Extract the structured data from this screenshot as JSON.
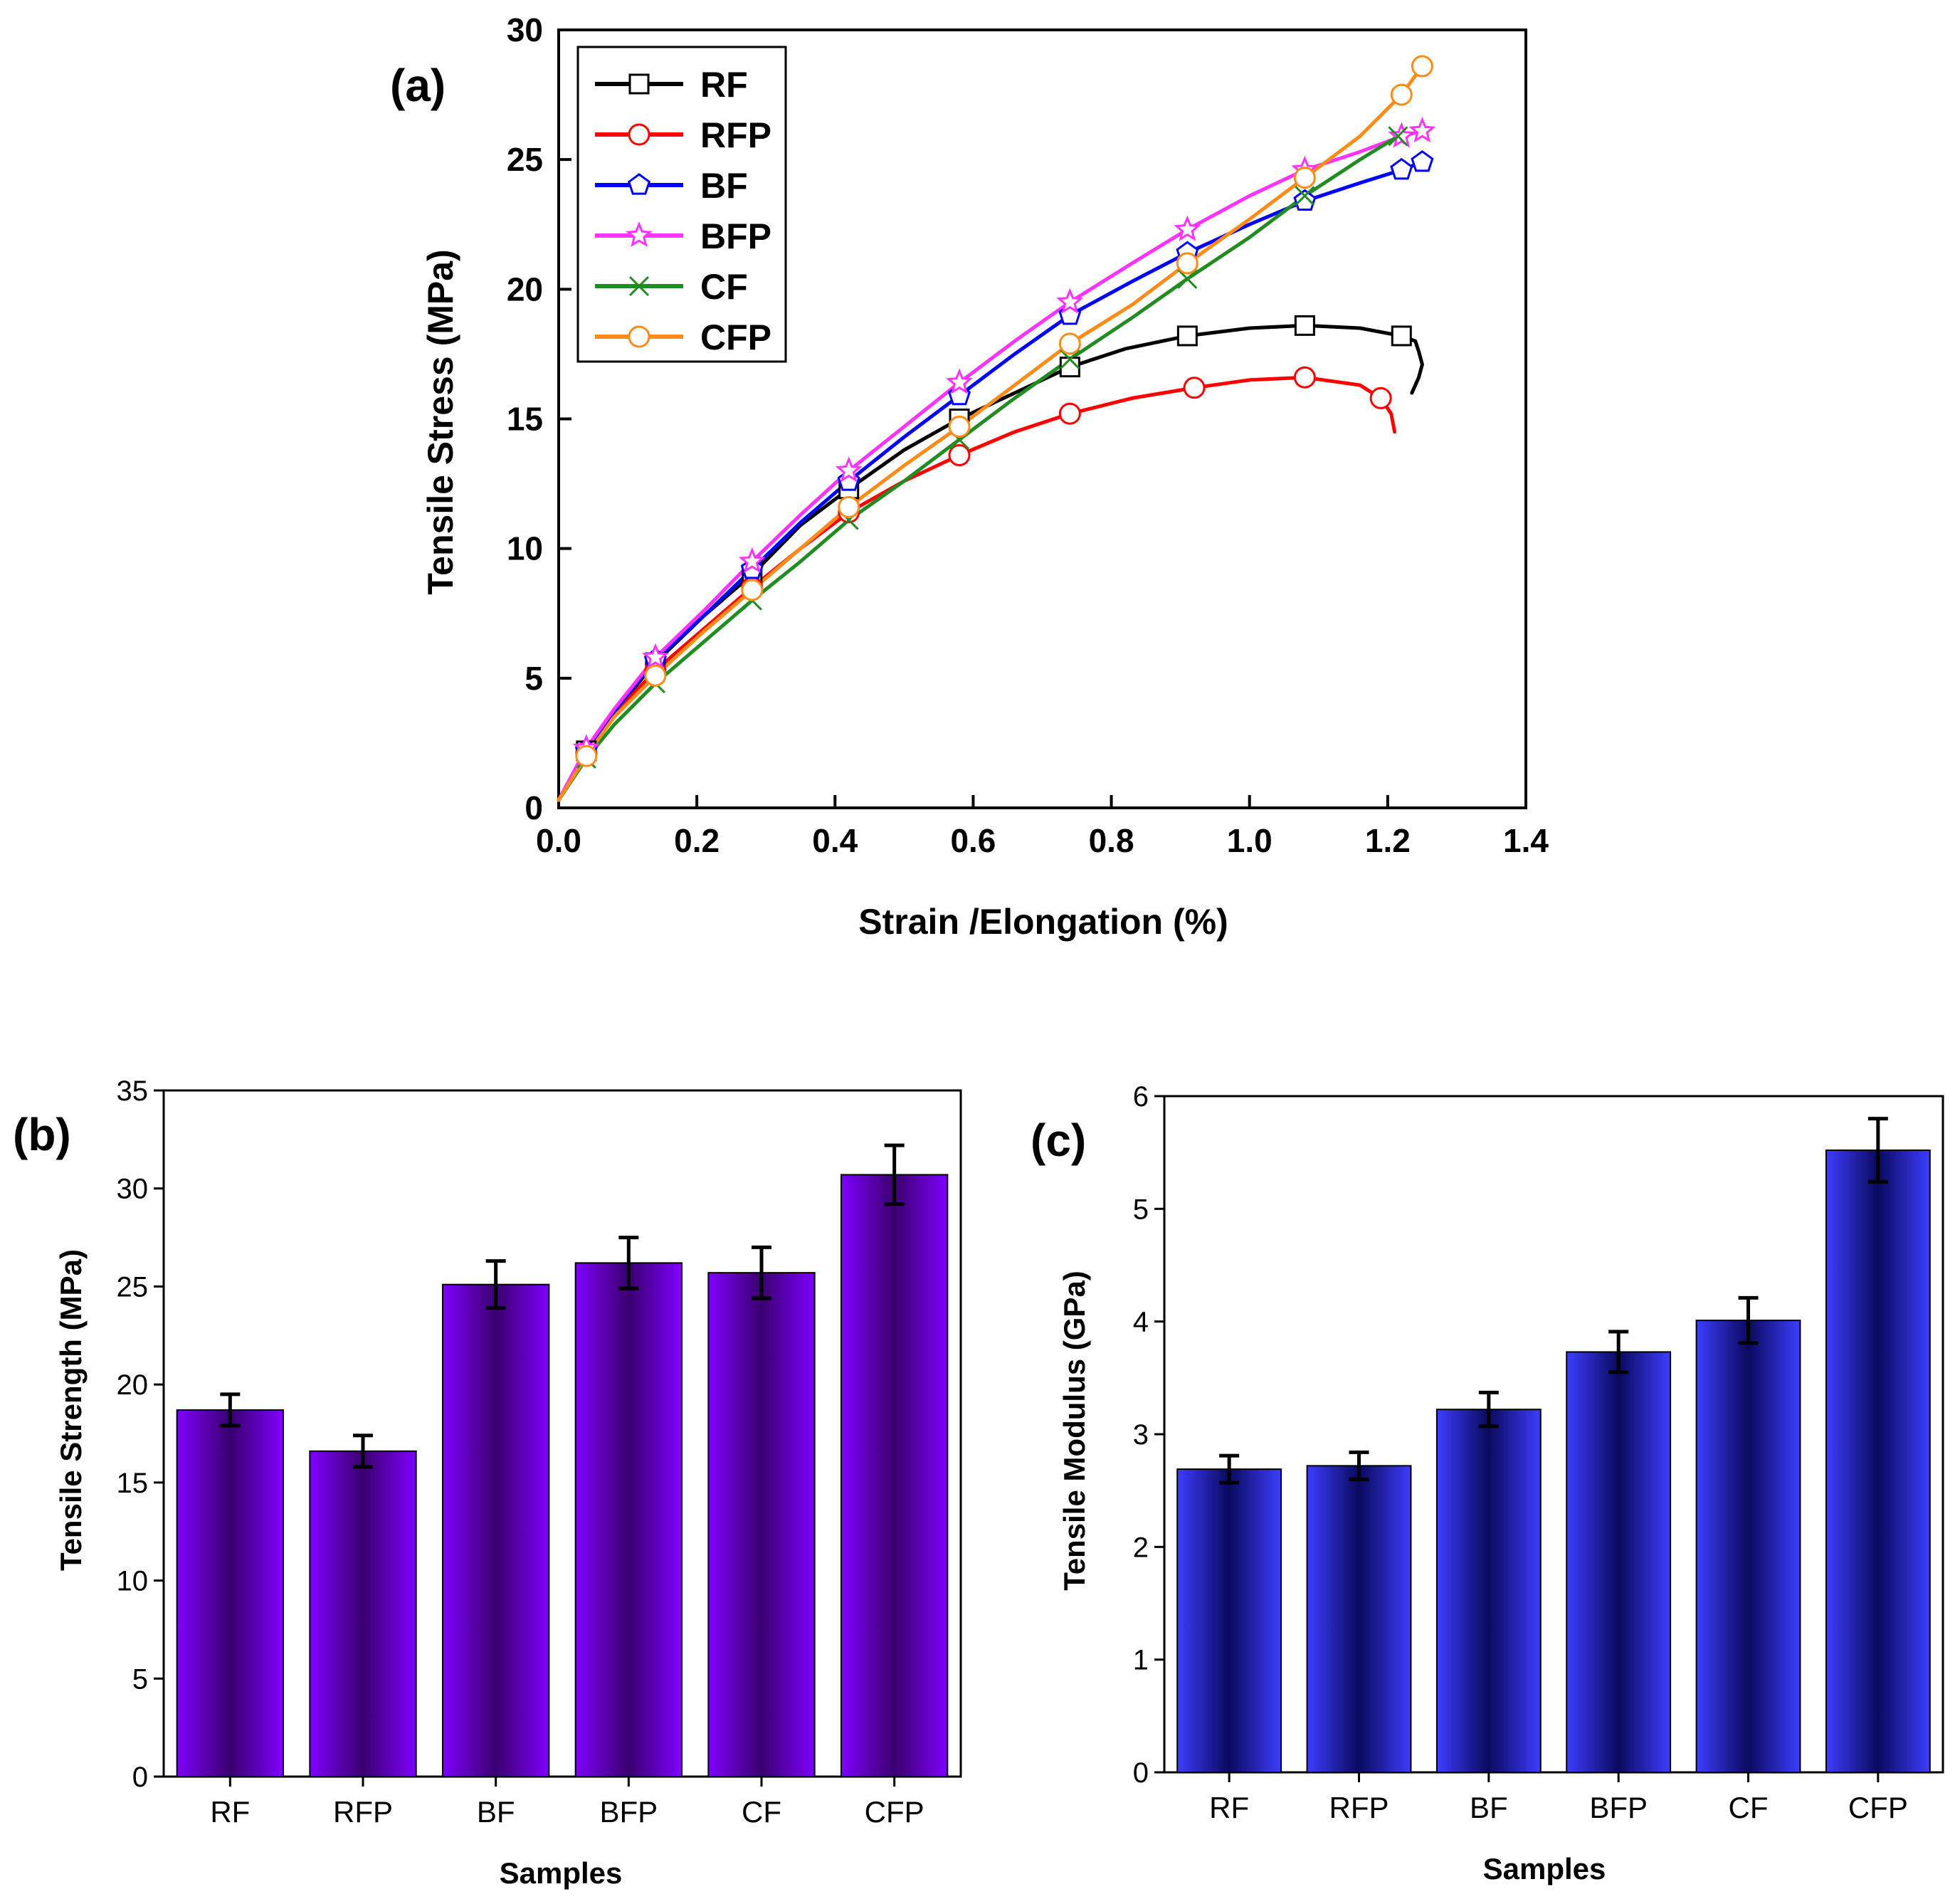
{
  "chart_data": [
    {
      "type": "line",
      "panel_label": "(a)",
      "xlabel": "Strain /Elongation (%)",
      "ylabel": "Tensile Stress (MPa)",
      "xlim": [
        0,
        1.4
      ],
      "ylim": [
        0,
        30
      ],
      "xticks": [
        "0.0",
        "0.2",
        "0.4",
        "0.6",
        "0.8",
        "1.0",
        "1.2",
        "1.4"
      ],
      "yticks": [
        "0",
        "5",
        "10",
        "15",
        "20",
        "25",
        "30"
      ],
      "legend_position": "top-left",
      "grid": false,
      "series": [
        {
          "name": "RF",
          "color": "#000000",
          "marker": "square",
          "x": [
            0.0,
            0.04,
            0.08,
            0.14,
            0.21,
            0.28,
            0.35,
            0.42,
            0.5,
            0.58,
            0.66,
            0.74,
            0.82,
            0.91,
            1.0,
            1.08,
            1.16,
            1.22,
            1.24,
            1.245,
            1.25,
            1.245,
            1.235
          ],
          "y": [
            0.3,
            2.2,
            3.7,
            5.6,
            7.4,
            9.0,
            10.9,
            12.3,
            13.8,
            15.0,
            16.0,
            17.0,
            17.7,
            18.2,
            18.5,
            18.6,
            18.5,
            18.2,
            18.0,
            17.6,
            17.1,
            16.6,
            16.0
          ]
        },
        {
          "name": "RFP",
          "color": "#ff0000",
          "marker": "circle",
          "x": [
            0.0,
            0.04,
            0.08,
            0.14,
            0.21,
            0.28,
            0.35,
            0.42,
            0.5,
            0.58,
            0.66,
            0.74,
            0.83,
            0.92,
            1.0,
            1.08,
            1.16,
            1.19,
            1.205,
            1.21
          ],
          "y": [
            0.3,
            2.1,
            3.6,
            5.3,
            6.9,
            8.5,
            10.0,
            11.4,
            12.6,
            13.6,
            14.5,
            15.2,
            15.8,
            16.2,
            16.5,
            16.6,
            16.3,
            15.8,
            15.2,
            14.5
          ]
        },
        {
          "name": "BF",
          "color": "#0000ff",
          "marker": "pentagon",
          "x": [
            0.0,
            0.04,
            0.08,
            0.14,
            0.21,
            0.28,
            0.35,
            0.42,
            0.5,
            0.58,
            0.66,
            0.74,
            0.83,
            0.91,
            1.0,
            1.08,
            1.16,
            1.22,
            1.25
          ],
          "y": [
            0.3,
            2.2,
            3.7,
            5.7,
            7.4,
            9.2,
            11.0,
            12.6,
            14.3,
            15.9,
            17.5,
            19.0,
            20.3,
            21.4,
            22.5,
            23.4,
            24.1,
            24.6,
            24.9
          ]
        },
        {
          "name": "BFP",
          "color": "#ff33ff",
          "marker": "star",
          "x": [
            0.0,
            0.04,
            0.08,
            0.14,
            0.21,
            0.28,
            0.35,
            0.42,
            0.5,
            0.58,
            0.66,
            0.74,
            0.83,
            0.91,
            1.0,
            1.08,
            1.16,
            1.22,
            1.25
          ],
          "y": [
            0.3,
            2.3,
            3.8,
            5.8,
            7.6,
            9.5,
            11.3,
            13.0,
            14.7,
            16.4,
            18.0,
            19.5,
            21.0,
            22.3,
            23.6,
            24.6,
            25.3,
            25.9,
            26.1
          ]
        },
        {
          "name": "CF",
          "color": "#228b22",
          "marker": "x",
          "x": [
            0.0,
            0.04,
            0.08,
            0.14,
            0.21,
            0.28,
            0.35,
            0.42,
            0.5,
            0.58,
            0.66,
            0.74,
            0.83,
            0.91,
            1.0,
            1.08,
            1.16,
            1.215
          ],
          "y": [
            0.3,
            1.9,
            3.2,
            4.8,
            6.4,
            8.0,
            9.5,
            11.1,
            12.6,
            14.2,
            15.8,
            17.3,
            18.9,
            20.4,
            22.0,
            23.6,
            25.0,
            25.9
          ]
        },
        {
          "name": "CFP",
          "color": "#ff8c1a",
          "marker": "circle",
          "x": [
            0.0,
            0.04,
            0.08,
            0.14,
            0.21,
            0.28,
            0.35,
            0.42,
            0.5,
            0.58,
            0.66,
            0.74,
            0.83,
            0.91,
            1.0,
            1.08,
            1.16,
            1.22,
            1.25
          ],
          "y": [
            0.3,
            2.0,
            3.5,
            5.1,
            6.8,
            8.4,
            10.0,
            11.6,
            13.2,
            14.7,
            16.3,
            17.9,
            19.4,
            21.0,
            22.7,
            24.3,
            25.9,
            27.5,
            28.6
          ]
        }
      ]
    },
    {
      "type": "bar",
      "panel_label": "(b)",
      "xlabel": "Samples",
      "ylabel": "Tensile Strength (MPa)",
      "ylim": [
        0,
        35
      ],
      "yticks": [
        "0",
        "5",
        "10",
        "15",
        "20",
        "25",
        "30",
        "35"
      ],
      "categories": [
        "RF",
        "RFP",
        "BF",
        "BFP",
        "CF",
        "CFP"
      ],
      "values": [
        18.7,
        16.6,
        25.1,
        26.2,
        25.7,
        30.7
      ],
      "errors": [
        0.8,
        0.8,
        1.2,
        1.3,
        1.3,
        1.5
      ],
      "bar_color": "#8000ff",
      "bar_shade": "#3a006e"
    },
    {
      "type": "bar",
      "panel_label": "(c)",
      "xlabel": "Samples",
      "ylabel": "Tensile Modulus (GPa)",
      "ylim": [
        0,
        6
      ],
      "yticks": [
        "0",
        "1",
        "2",
        "3",
        "4",
        "5",
        "6"
      ],
      "categories": [
        "RF",
        "RFP",
        "BF",
        "BFP",
        "CF",
        "CFP"
      ],
      "values": [
        2.69,
        2.72,
        3.22,
        3.73,
        4.01,
        5.52
      ],
      "errors": [
        0.12,
        0.12,
        0.15,
        0.18,
        0.2,
        0.28
      ],
      "bar_color": "#3d3dff",
      "bar_shade": "#0a0a5e"
    }
  ]
}
